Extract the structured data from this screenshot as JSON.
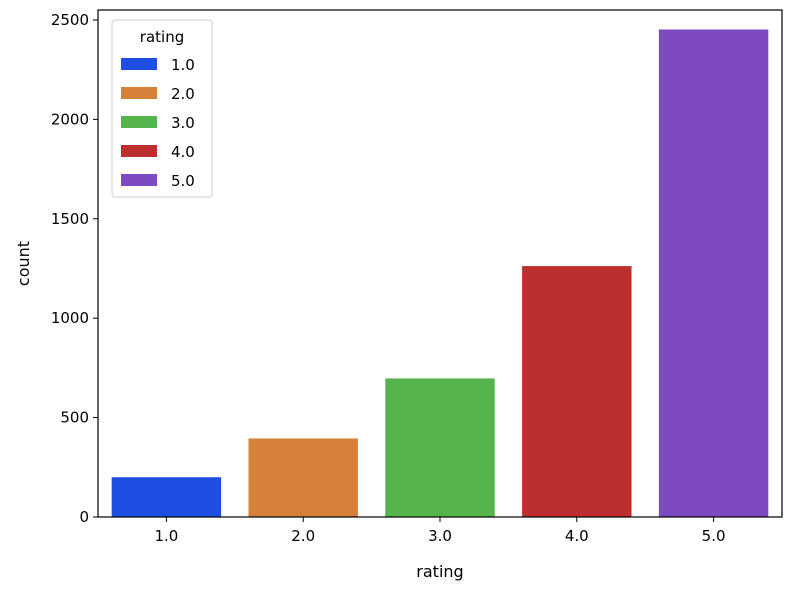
{
  "chart_data": {
    "type": "bar",
    "title": "",
    "xlabel": "rating",
    "ylabel": "count",
    "categories": [
      "1.0",
      "2.0",
      "3.0",
      "4.0",
      "5.0"
    ],
    "values": [
      200,
      395,
      697,
      1262,
      2452
    ],
    "colors": [
      "#1f4ee2",
      "#d6813a",
      "#55b44b",
      "#bd2e2e",
      "#7e4ac2"
    ],
    "ylim": [
      0,
      2550
    ],
    "yticks": [
      0,
      500,
      1000,
      1500,
      2000,
      2500
    ],
    "ytick_labels": [
      "0",
      "500",
      "1000",
      "1500",
      "2000",
      "2500"
    ],
    "grid": false,
    "legend": {
      "title": "rating",
      "placement": "top-left",
      "entries": [
        "1.0",
        "2.0",
        "3.0",
        "4.0",
        "5.0"
      ]
    }
  }
}
